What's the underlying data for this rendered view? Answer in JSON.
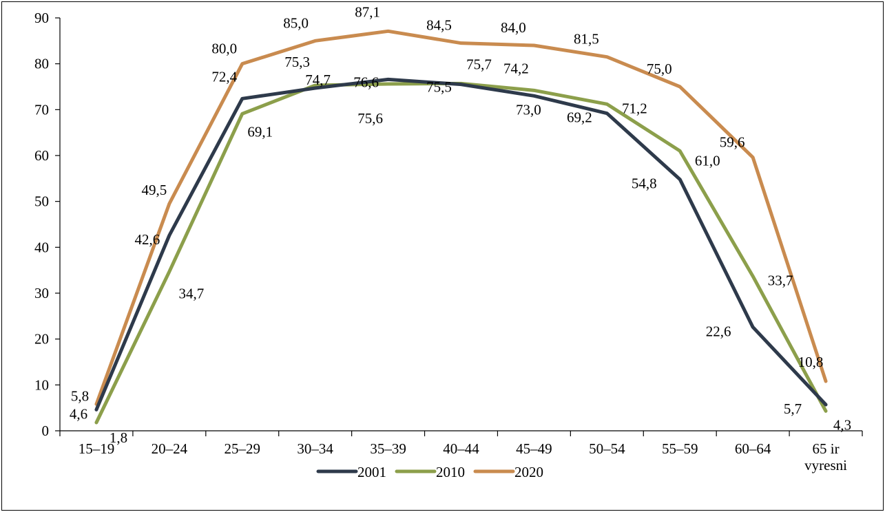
{
  "chart_data": {
    "type": "line",
    "title": "",
    "xlabel": "",
    "ylabel": "",
    "categories": [
      "15–19",
      "20–24",
      "25–29",
      "30–34",
      "35–39",
      "40–44",
      "45–49",
      "50–54",
      "55–59",
      "60–64",
      "65 ir vyresni"
    ],
    "category_lines": [
      [
        "15–19"
      ],
      [
        "20–24"
      ],
      [
        "25–29"
      ],
      [
        "30–34"
      ],
      [
        "35–39"
      ],
      [
        "40–44"
      ],
      [
        "45–49"
      ],
      [
        "50–54"
      ],
      [
        "55–59"
      ],
      [
        "60–64"
      ],
      [
        "65 ir",
        "vyresni"
      ]
    ],
    "ylim": [
      0,
      90
    ],
    "yticks": [
      0,
      10,
      20,
      30,
      40,
      50,
      60,
      70,
      80,
      90
    ],
    "grid": false,
    "legend_position": "bottom",
    "decimal_separator": ",",
    "series": [
      {
        "name": "2001",
        "color": "#2e3a4b",
        "values": [
          4.6,
          42.6,
          72.4,
          74.7,
          76.6,
          75.5,
          73.0,
          69.2,
          54.8,
          22.6,
          5.7
        ]
      },
      {
        "name": "2010",
        "color": "#8c9f4b",
        "values": [
          1.8,
          34.7,
          69.1,
          75.3,
          75.6,
          75.7,
          74.2,
          71.2,
          61.0,
          33.7,
          4.3
        ]
      },
      {
        "name": "2020",
        "color": "#c98b4f",
        "values": [
          5.8,
          49.5,
          80.0,
          85.0,
          87.1,
          84.5,
          84.0,
          81.5,
          75.0,
          59.6,
          10.8
        ]
      }
    ]
  }
}
